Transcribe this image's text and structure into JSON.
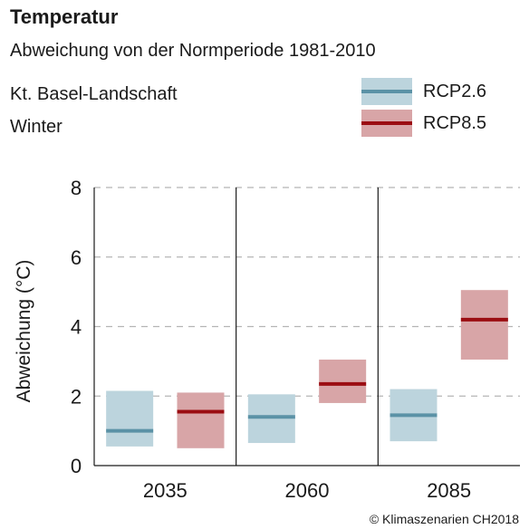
{
  "header": {
    "title": "Temperatur",
    "subtitle": "Abweichung von der Normperiode 1981-2010",
    "region": "Kt. Basel-Landschaft",
    "season": "Winter"
  },
  "legend": {
    "items": [
      {
        "label": "RCP2.6",
        "fill": "#bcd4dd",
        "line": "#5b92a6"
      },
      {
        "label": "RCP8.5",
        "fill": "#d8a5a7",
        "line": "#9b0d12"
      }
    ]
  },
  "footer": {
    "copyright": "© Klimaszenarien CH2018"
  },
  "chart_data": {
    "type": "box-range",
    "title": "Temperatur",
    "subtitle": "Abweichung von der Normperiode 1981-2010",
    "ylabel": "Abweichung (°C)",
    "xlabel": "",
    "ylim": [
      0,
      8
    ],
    "yticks": [
      0,
      2,
      4,
      6,
      8
    ],
    "grid": true,
    "legend_position": "top-right",
    "categories": [
      "2035",
      "2060",
      "2085"
    ],
    "series": [
      {
        "name": "RCP2.6",
        "color": "#5b92a6",
        "fill": "#bcd4dd",
        "low": [
          0.55,
          0.65,
          0.7
        ],
        "median": [
          1.0,
          1.4,
          1.45
        ],
        "high": [
          2.15,
          2.05,
          2.2
        ]
      },
      {
        "name": "RCP8.5",
        "color": "#9b0d12",
        "fill": "#d8a5a7",
        "low": [
          0.5,
          1.8,
          3.05
        ],
        "median": [
          1.55,
          2.35,
          4.2
        ],
        "high": [
          2.1,
          3.05,
          5.05
        ]
      }
    ]
  }
}
